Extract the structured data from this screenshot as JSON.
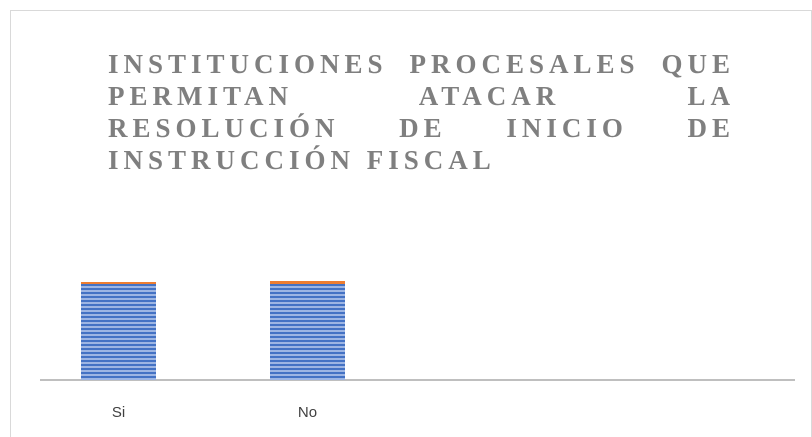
{
  "chart_data": {
    "type": "bar",
    "title": "INSTITUCIONES PROCESALES QUE PERMITAN ATACAR LA RESOLUCIÓN DE INICIO DE INSTRUCCIÓN FISCAL",
    "categories": [
      "Si",
      "No"
    ],
    "series": [
      {
        "color": "#4472c4",
        "values": [
          48,
          48
        ]
      },
      {
        "color": "#ed7d31",
        "values": [
          1,
          1.5
        ]
      }
    ],
    "stacked": true,
    "ylim": [
      0,
      100
    ]
  }
}
